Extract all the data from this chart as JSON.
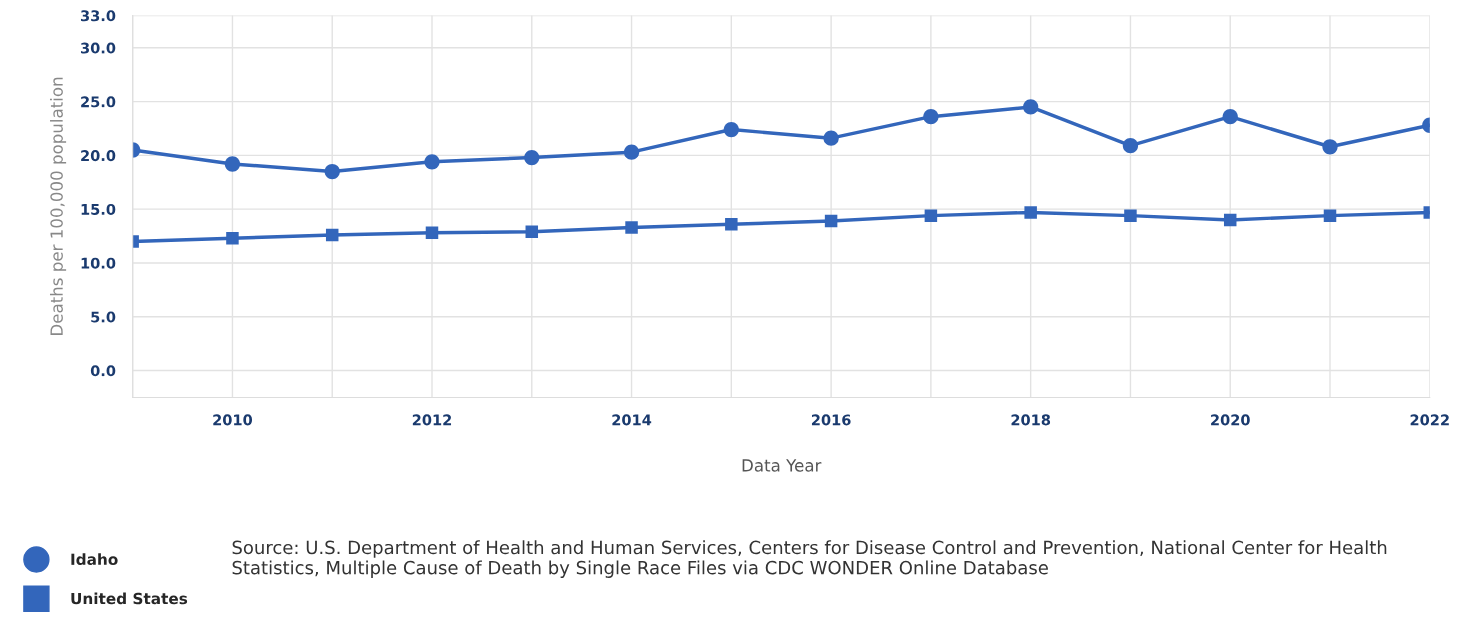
{
  "chart_data": {
    "type": "line",
    "xlabel": "Data Year",
    "ylabel": "Deaths per 100,000 population",
    "x": [
      2009,
      2010,
      2011,
      2012,
      2013,
      2014,
      2015,
      2016,
      2017,
      2018,
      2019,
      2020,
      2021,
      2022
    ],
    "series": [
      {
        "name": "Idaho",
        "color": "#3366bb",
        "marker": "circle",
        "values": [
          20.5,
          19.2,
          18.5,
          19.4,
          19.8,
          20.3,
          22.4,
          21.6,
          23.6,
          24.5,
          20.9,
          23.6,
          20.8,
          22.8
        ]
      },
      {
        "name": "United States",
        "color": "#3366bb",
        "marker": "square",
        "values": [
          12.0,
          12.3,
          12.6,
          12.8,
          12.9,
          13.3,
          13.6,
          13.9,
          14.4,
          14.7,
          14.4,
          14.0,
          14.4,
          14.7
        ]
      }
    ],
    "xlim": [
      2009,
      2022
    ],
    "xticks": [
      {
        "value": 2009,
        "label": null
      },
      2010,
      {
        "value": 2011,
        "label": null
      },
      2012,
      {
        "value": 2013,
        "label": null
      },
      2014,
      {
        "value": 2015,
        "label": null
      },
      2016,
      {
        "value": 2017,
        "label": null
      },
      2018,
      {
        "value": 2019,
        "label": null
      },
      2020,
      {
        "value": 2021,
        "label": null
      },
      2022
    ],
    "ylim": [
      -2.5,
      33
    ],
    "yticks": [
      {
        "value": 0,
        "label": "0.0"
      },
      {
        "value": 5,
        "label": "5.0"
      },
      {
        "value": 10,
        "label": "10.0"
      },
      {
        "value": 15,
        "label": "15.0"
      },
      {
        "value": 20,
        "label": "20.0"
      },
      {
        "value": 25,
        "label": "25.0"
      },
      {
        "value": 30,
        "label": "30.0"
      },
      {
        "value": 33,
        "label": "33.0"
      }
    ],
    "grid": true,
    "legend": "bottom left",
    "line_style": "solid",
    "annotations": [
      "Source: U.S. Department of Health and Human Services, Centers for Disease Control and Prevention, National Center for Health Statistics, Multiple Cause of Death by Single Race Files via CDC WONDER Online Database"
    ]
  }
}
